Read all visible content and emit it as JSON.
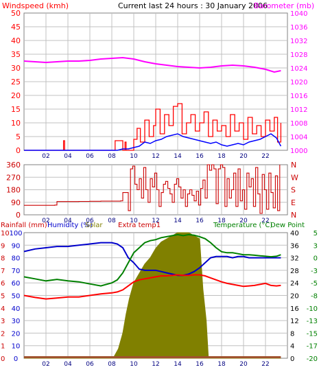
{
  "header": {
    "windspeed_label": "Windspeed (kmh)",
    "title": "Current last 24 hours : 30 January 2006",
    "barometer_label": "Barometer (mb)"
  },
  "bottom_header": {
    "rainfall_label": "Rainfall (mm)",
    "humidity_label": "Humidity (%)",
    "solar_label": "Solar",
    "extra_temp_label": "Extra temp1",
    "temperature_label": "Temperature (°C)",
    "dew_point_label": "Dew Point"
  },
  "colors": {
    "wind": "#ff0000",
    "avg_wind": "#0000ff",
    "barometer": "#ff00ff",
    "direction": "#cc0000",
    "rainfall": "#cc0000",
    "humidity": "#0000cc",
    "solar": "#808000",
    "temperature": "#ff0000",
    "dew_point": "#008000",
    "frame": "#808080",
    "grid": "#c0c0c0"
  },
  "chart_data": [
    {
      "type": "line",
      "title": "Current last 24 hours : 30 January 2006",
      "x_ticks": [
        "02",
        "04",
        "06",
        "08",
        "10",
        "12",
        "14",
        "16",
        "18",
        "20",
        "22"
      ],
      "xlim": [
        0,
        24
      ],
      "grid": true,
      "axes": {
        "y_left": {
          "label": "Windspeed (kmh)",
          "ticks": [
            "0",
            "5",
            "10",
            "15",
            "20",
            "25",
            "30",
            "35",
            "40",
            "45",
            "50"
          ],
          "lim": [
            0,
            50
          ]
        },
        "y_right": {
          "label": "Barometer (mb)",
          "ticks": [
            "1000",
            "1004",
            "1008",
            "1012",
            "1016",
            "1020",
            "1024",
            "1028",
            "1032",
            "1036",
            "1040"
          ],
          "lim": [
            1000,
            1040
          ]
        }
      },
      "series": [
        {
          "name": "Windspeed (kmh)",
          "axis": "left",
          "x": [
            0,
            2,
            3.5,
            3.6,
            3.7,
            4,
            6,
            8.2,
            8.3,
            9,
            9.2,
            9.3,
            9.6,
            10,
            10.3,
            10.6,
            11,
            11.4,
            11.8,
            12,
            12.4,
            12.8,
            13.2,
            13.6,
            14,
            14.4,
            14.8,
            15.2,
            15.6,
            16,
            16.4,
            16.8,
            17.2,
            17.6,
            18,
            18.4,
            18.8,
            19.2,
            19.6,
            20,
            20.4,
            20.8,
            21.2,
            21.6,
            22,
            22.4,
            22.8,
            23.1,
            23.4
          ],
          "y": [
            0,
            0,
            0,
            3.5,
            0,
            0,
            0,
            0,
            3.5,
            0,
            3,
            0,
            0,
            4,
            8,
            3,
            11,
            5,
            9,
            15,
            6,
            13,
            9,
            16,
            17,
            6,
            10,
            13,
            7,
            10,
            14,
            5,
            11,
            7,
            9,
            5,
            13,
            7,
            10,
            4,
            12,
            6,
            9,
            5,
            11,
            7,
            12,
            3,
            10
          ]
        },
        {
          "name": "Average windspeed",
          "axis": "left",
          "x": [
            0,
            8.5,
            9,
            9.5,
            10,
            10.5,
            11,
            11.5,
            12,
            12.5,
            13,
            13.5,
            14,
            14.5,
            15,
            15.5,
            16,
            16.5,
            17,
            17.5,
            18,
            18.5,
            19,
            19.5,
            20,
            20.5,
            21,
            21.5,
            22,
            22.5,
            23,
            23.4
          ],
          "y": [
            0,
            0,
            0.5,
            0.5,
            1,
            1.5,
            3,
            2.5,
            3.5,
            4,
            5,
            5.5,
            6,
            5,
            4.5,
            4,
            3.5,
            3,
            2.5,
            3,
            2,
            1.5,
            2,
            2.5,
            2,
            3,
            3.5,
            4,
            5,
            6,
            4.5,
            1.5
          ]
        },
        {
          "name": "Barometer (mb)",
          "axis": "right",
          "x": [
            0,
            1,
            2,
            3,
            4,
            5,
            6,
            7,
            8,
            9,
            10,
            11,
            12,
            13,
            14,
            15,
            16,
            17,
            18,
            19,
            20,
            21,
            22,
            22.8,
            23.4
          ],
          "y": [
            1026,
            1025.8,
            1025.6,
            1025.8,
            1026,
            1026,
            1026.2,
            1026.6,
            1026.8,
            1027,
            1026.6,
            1025.8,
            1025.2,
            1024.8,
            1024.4,
            1024.2,
            1024,
            1024.2,
            1024.6,
            1024.8,
            1024.6,
            1024.2,
            1023.6,
            1022.8,
            1023.2
          ]
        }
      ]
    },
    {
      "type": "line",
      "x_ticks": [
        "02",
        "04",
        "06",
        "08",
        "10",
        "12",
        "14",
        "16",
        "18",
        "20",
        "22"
      ],
      "xlim": [
        0,
        24
      ],
      "grid": true,
      "axes": {
        "y_left": {
          "ticks": [
            "0",
            "90",
            "180",
            "270",
            "360"
          ],
          "lim": [
            0,
            360
          ]
        },
        "y_right": {
          "ticks": [
            "N",
            "E",
            "S",
            "W",
            "N"
          ]
        }
      },
      "series": [
        {
          "name": "Wind direction",
          "axis": "left",
          "x": [
            0,
            2,
            2.8,
            3,
            4,
            5,
            6,
            7,
            8,
            8.8,
            9,
            9.4,
            9.5,
            9.7,
            9.9,
            10.1,
            10.3,
            10.5,
            10.7,
            10.9,
            11.1,
            11.3,
            11.5,
            11.7,
            11.9,
            12.1,
            12.3,
            12.5,
            12.7,
            12.9,
            13.1,
            13.3,
            13.5,
            13.7,
            13.9,
            14.1,
            14.3,
            14.5,
            14.7,
            14.9,
            15.1,
            15.3,
            15.5,
            15.7,
            15.9,
            16.1,
            16.3,
            16.5,
            16.7,
            16.9,
            17.1,
            17.3,
            17.5,
            17.7,
            17.9,
            18.1,
            18.3,
            18.5,
            18.7,
            18.9,
            19.1,
            19.3,
            19.5,
            19.7,
            19.9,
            20.1,
            20.3,
            20.5,
            20.7,
            20.9,
            21.1,
            21.3,
            21.5,
            21.7,
            21.9,
            22.1,
            22.3,
            22.5,
            22.7,
            22.9,
            23.1,
            23.3
          ],
          "y": [
            68,
            68,
            70,
            95,
            95,
            96,
            97,
            98,
            98,
            100,
            160,
            160,
            30,
            330,
            350,
            220,
            180,
            260,
            120,
            340,
            180,
            90,
            260,
            200,
            300,
            180,
            60,
            160,
            220,
            240,
            190,
            150,
            90,
            220,
            260,
            200,
            120,
            180,
            60,
            150,
            180,
            140,
            100,
            170,
            70,
            190,
            250,
            120,
            360,
            320,
            360,
            330,
            80,
            330,
            360,
            340,
            60,
            260,
            120,
            180,
            300,
            60,
            330,
            100,
            180,
            40,
            300,
            200,
            260,
            60,
            340,
            150,
            10,
            290,
            180,
            40,
            300,
            160,
            50,
            280,
            30,
            360
          ]
        }
      ]
    },
    {
      "type": "line",
      "x_ticks": [
        "02",
        "04",
        "06",
        "08",
        "10",
        "12",
        "14",
        "16",
        "18",
        "20",
        "22"
      ],
      "xlim": [
        0,
        24
      ],
      "grid": true,
      "axes": {
        "y_rainfall": {
          "label": "Rainfall (mm)",
          "ticks": [
            "0",
            "1",
            "2",
            "3",
            "4",
            "5",
            "6",
            "7",
            "8",
            "9",
            "10"
          ],
          "lim": [
            0,
            10
          ]
        },
        "y_humidity": {
          "label": "Humidity (%)",
          "ticks": [
            "0",
            "10",
            "20",
            "30",
            "40",
            "50",
            "60",
            "70",
            "80",
            "90",
            "100"
          ],
          "lim": [
            0,
            100
          ]
        },
        "y_solar": {
          "label": "Solar",
          "ticks": [
            "0",
            "4",
            "8",
            "12",
            "16",
            "20",
            "24",
            "28",
            "32",
            "36",
            "40"
          ],
          "lim": [
            0,
            40
          ]
        },
        "y_temperature": {
          "label": "Temperature (°C)",
          "ticks": [
            "-20",
            "-17",
            "-15",
            "-13",
            "-10",
            "-8",
            "-5",
            "-3",
            "0",
            "3",
            "5"
          ],
          "lim": [
            -20,
            5
          ]
        }
      },
      "series": [
        {
          "name": "Rainfall (mm)",
          "axis": "rainfall",
          "x": [
            0,
            23.4
          ],
          "y": [
            0,
            0
          ]
        },
        {
          "name": "Humidity (%)",
          "axis": "humidity",
          "x": [
            0,
            1,
            2,
            3,
            4,
            5,
            6,
            7,
            8,
            8.5,
            9,
            9.5,
            10,
            10.5,
            11,
            11.5,
            12,
            12.5,
            13,
            13.5,
            14,
            14.5,
            15,
            15.5,
            16,
            16.5,
            17,
            17.5,
            18,
            18.5,
            19,
            19.5,
            20,
            20.5,
            21,
            21.5,
            22,
            22.5,
            23,
            23.4
          ],
          "y": [
            85,
            87,
            88,
            89,
            89,
            90,
            91,
            92,
            92,
            91,
            88,
            80,
            76,
            71,
            70,
            70,
            70,
            69,
            68,
            67,
            66,
            66,
            67,
            69,
            72,
            76,
            80,
            81,
            81,
            81,
            80,
            81,
            81,
            80,
            80,
            80,
            80,
            80,
            80,
            80
          ]
        },
        {
          "name": "Solar",
          "axis": "solar",
          "x": [
            0,
            7.5,
            8.2,
            8.6,
            9,
            9.3,
            9.6,
            10,
            10.5,
            11,
            11.5,
            12,
            12.5,
            13,
            13.5,
            14,
            14.5,
            15,
            15.5,
            16,
            16.3,
            16.6,
            16.8,
            17.1,
            18,
            20,
            23.4
          ],
          "y": [
            0,
            0,
            0.5,
            3,
            8,
            14,
            19,
            24,
            27,
            30,
            32,
            35,
            37,
            38,
            39,
            40,
            40,
            40,
            39,
            38,
            22,
            12,
            0,
            0,
            0,
            0,
            0
          ]
        },
        {
          "name": "Temperature (°C)",
          "axis": "temperature",
          "x": [
            0,
            1,
            2,
            3,
            4,
            5,
            6,
            7,
            8,
            8.5,
            9,
            9.5,
            10,
            10.5,
            11,
            11.5,
            12,
            12.5,
            13,
            13.5,
            14,
            14.5,
            15,
            15.5,
            16,
            16.5,
            17,
            17.5,
            18,
            18.5,
            19,
            19.5,
            20,
            20.5,
            21,
            21.5,
            22,
            22.5,
            23,
            23.4
          ],
          "y": [
            -7.5,
            -7.9,
            -8.2,
            -8,
            -7.8,
            -7.8,
            -7.5,
            -7.2,
            -7,
            -6.8,
            -6.4,
            -5.6,
            -4.8,
            -4.4,
            -4.2,
            -4,
            -3.8,
            -3.6,
            -3.6,
            -3.5,
            -3.4,
            -3.5,
            -3.5,
            -3.4,
            -3.4,
            -3.6,
            -4,
            -4.4,
            -4.8,
            -5.1,
            -5.3,
            -5.5,
            -5.7,
            -5.6,
            -5.5,
            -5.3,
            -5.1,
            -5.5,
            -5.6,
            -5.5
          ]
        },
        {
          "name": "Dew Point",
          "axis": "temperature",
          "x": [
            0,
            1,
            2,
            3,
            4,
            5,
            6,
            7,
            8,
            8.5,
            9,
            9.5,
            10,
            10.5,
            11,
            11.5,
            12,
            12.5,
            13,
            13.5,
            14,
            14.5,
            15,
            15.5,
            16,
            16.5,
            17,
            17.5,
            18,
            18.5,
            19,
            19.5,
            20,
            20.5,
            21,
            21.5,
            22,
            22.5,
            23,
            23.4
          ],
          "y": [
            -3.8,
            -4.2,
            -4.6,
            -4.3,
            -4.6,
            -4.8,
            -5.2,
            -5.6,
            -5,
            -4.4,
            -3,
            -1,
            1,
            2,
            3,
            3.4,
            3.6,
            4,
            4.2,
            4.4,
            4.6,
            4.4,
            4.6,
            4.5,
            4.2,
            3.8,
            3,
            2,
            1.2,
            1,
            1,
            0.8,
            0.6,
            0.6,
            0.5,
            0.4,
            0.3,
            0.2,
            0.3,
            0.6
          ]
        }
      ]
    }
  ]
}
